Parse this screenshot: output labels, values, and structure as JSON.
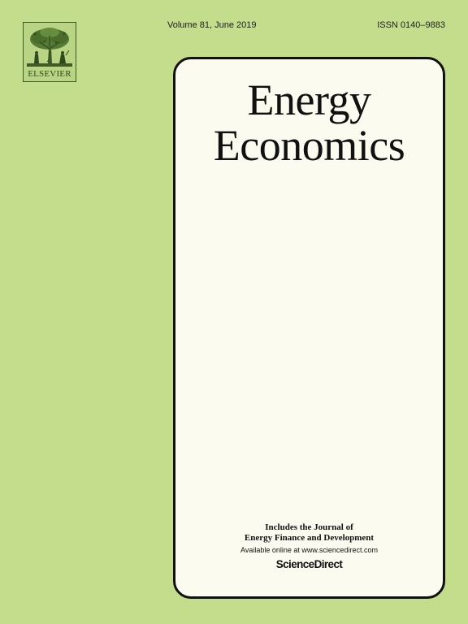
{
  "publisher": {
    "logo_icon": "elsevier-tree-icon",
    "name": "ELSEVIER"
  },
  "header": {
    "volume": "Volume 81, June 2019",
    "issn": "ISSN 0140–9883"
  },
  "journal": {
    "title_line1": "Energy",
    "title_line2": "Economics"
  },
  "footer": {
    "includes_line1": "Includes the Journal of",
    "includes_line2": "Energy Finance and Development",
    "available": "Available online at www.sciencedirect.com",
    "platform": "ScienceDirect"
  },
  "colors": {
    "background": "#c3dd8d",
    "panel": "#fbfcef",
    "panel_border": "#111111",
    "logo_ink": "#2f4a1f"
  }
}
